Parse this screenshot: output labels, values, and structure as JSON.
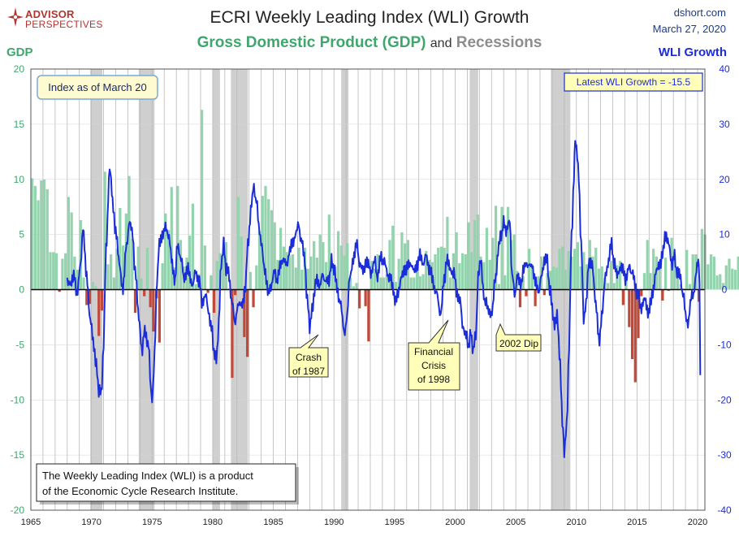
{
  "brand": {
    "name": "ADVISOR",
    "sub": "PERSPECTIVES",
    "mark": "compass-star-logo"
  },
  "site": {
    "url": "dshort.com",
    "date": "March 27, 2020"
  },
  "titles": {
    "title": "ECRI Weekly Leading Index (WLI) Growth",
    "subtitle_gdp": "Gross Domestic Product (GDP)",
    "subtitle_and": "and",
    "subtitle_rec": "Recessions",
    "left_axis": "GDP",
    "right_axis": "WLI Growth"
  },
  "colors": {
    "gdp_pos": "#93d3ad",
    "gdp_neg": "#c0493a",
    "wli": "#1b2dd8",
    "recession": "#cfcfcf",
    "callout_yellow": "#ffffb9",
    "callout_blue_bg": "#fffbd1",
    "grid": "#b8b8b8"
  },
  "chart_data": {
    "type": "bar+line",
    "x_range": [
      1965,
      2020.6
    ],
    "x_ticks": [
      "1965",
      "1970",
      "1975",
      "1980",
      "1985",
      "1990",
      "1995",
      "2000",
      "2005",
      "2010",
      "2015",
      "2020"
    ],
    "left_axis": {
      "label": "GDP",
      "range": [
        -20,
        20
      ],
      "ticks": [
        "20",
        "15",
        "10",
        "5",
        "0",
        "-5",
        "-10",
        "-15",
        "-20"
      ]
    },
    "right_axis": {
      "label": "WLI Growth",
      "range": [
        -40,
        40
      ],
      "ticks": [
        "40",
        "30",
        "20",
        "10",
        "0",
        "-10",
        "-20",
        "-30",
        "-40"
      ]
    },
    "grid": true,
    "recessions": [
      [
        1969.9,
        1970.9
      ],
      [
        1973.9,
        1975.2
      ],
      [
        1980.0,
        1980.6
      ],
      [
        1981.5,
        1982.9
      ],
      [
        1990.6,
        1991.2
      ],
      [
        2001.2,
        2001.9
      ],
      [
        2007.9,
        2009.5
      ]
    ],
    "gdp_start": 1965.0,
    "gdp_quarterly": [
      10.1,
      9.4,
      8.1,
      9.9,
      10.0,
      9.1,
      3.4,
      3.4,
      3.3,
      -0.2,
      2.8,
      3.3,
      8.4,
      7.0,
      3.0,
      1.8,
      6.3,
      1.1,
      -1.4,
      -1.3,
      0.7,
      0.3,
      -4.2,
      -1.9,
      10.7,
      2.3,
      3.2,
      1.1,
      3.7,
      7.4,
      4.0,
      6.9,
      10.3,
      4.6,
      -2.1,
      3.9,
      1.0,
      -0.6,
      3.8,
      -1.6,
      -3.8,
      -0.8,
      -4.8,
      2.4,
      6.9,
      5.4,
      9.3,
      2.0,
      9.4,
      4.5,
      2.1,
      2.9,
      4.9,
      7.8,
      0.5,
      1.4,
      16.3,
      4.0,
      -0.3,
      1.3,
      -2.1,
      2.6,
      3.3,
      3.2,
      4.3,
      0.1,
      -8.0,
      -0.5,
      8.4,
      4.8,
      -4.3,
      -6.1,
      1.6,
      -1.6,
      2.2,
      5.3,
      8.5,
      9.4,
      8.2,
      7.2,
      6.1,
      2.7,
      5.6,
      3.9,
      3.4,
      3.1,
      3.2,
      2.0,
      3.8,
      1.8,
      3.8,
      1.9,
      3.0,
      4.4,
      2.9,
      5.0,
      4.3,
      2.5,
      6.8,
      2.1,
      2.1,
      5.3,
      4.0,
      3.1,
      4.2,
      1.1,
      0.3,
      0.6,
      -1.7,
      0.0,
      -1.5,
      -4.7,
      2.6,
      1.9,
      3.2,
      1.1,
      1.1,
      1.4,
      4.5,
      5.8,
      0.7,
      2.8,
      5.2,
      4.2,
      4.5,
      1.1,
      1.1,
      2.5,
      1.2,
      1.4,
      3.5,
      2.7,
      2.5,
      3.2,
      3.8,
      3.9,
      3.8,
      6.6,
      1.1,
      3.3,
      5.2,
      2.4,
      3.3,
      3.2,
      6.1,
      3.4,
      6.3,
      6.8,
      3.0,
      2.5,
      5.6,
      2.7,
      4.7,
      7.6,
      0.5,
      7.5,
      1.3,
      7.5,
      4.5,
      5.0,
      1.7,
      -1.6,
      1.2,
      -0.6,
      3.7,
      2.3,
      -1.5,
      1.2,
      3.0,
      -0.5,
      1.5,
      1.7,
      2.1,
      2.0,
      3.7,
      3.9,
      1.8,
      3.5,
      3.0,
      3.7,
      4.3,
      2.1,
      3.4,
      2.3,
      4.5,
      3.0,
      3.8,
      1.9,
      2.1,
      1.1,
      0.6,
      2.6,
      0.6,
      2.2,
      2.6,
      -1.4,
      1.4,
      -3.4,
      -6.3,
      -8.4,
      -4.4,
      -0.6,
      1.5,
      4.5,
      1.5,
      3.7,
      3.0,
      2.0,
      -1.0,
      2.9,
      -0.1,
      4.7,
      3.2,
      1.7,
      0.5,
      0.1,
      3.6,
      0.5,
      3.2,
      3.2,
      -1.1,
      5.5,
      5.0,
      2.3,
      3.2,
      3.0,
      1.3,
      1.4,
      0.6,
      2.2,
      2.8,
      1.9,
      1.8,
      3.0,
      2.8,
      2.3,
      2.5,
      3.5,
      2.9,
      1.1,
      3.1,
      2.0,
      2.1,
      2.1
    ],
    "wli_anchors": [
      [
        1968.0,
        2.0
      ],
      [
        1968.3,
        0.5
      ],
      [
        1968.6,
        3.0
      ],
      [
        1968.8,
        -1.5
      ],
      [
        1969.1,
        5.0
      ],
      [
        1969.3,
        10.5
      ],
      [
        1969.6,
        3.0
      ],
      [
        1969.9,
        -6.0
      ],
      [
        1970.2,
        -10.0
      ],
      [
        1970.4,
        -14.0
      ],
      [
        1970.6,
        -18.0
      ],
      [
        1970.8,
        -19.0
      ],
      [
        1971.0,
        -10.0
      ],
      [
        1971.2,
        8.0
      ],
      [
        1971.5,
        21.5
      ],
      [
        1971.8,
        15.0
      ],
      [
        1972.0,
        10.0
      ],
      [
        1972.3,
        5.0
      ],
      [
        1972.6,
        0.0
      ],
      [
        1972.9,
        8.0
      ],
      [
        1973.1,
        12.0
      ],
      [
        1973.4,
        10.0
      ],
      [
        1973.6,
        3.0
      ],
      [
        1973.9,
        -5.0
      ],
      [
        1974.2,
        -11.0
      ],
      [
        1974.4,
        -7.0
      ],
      [
        1974.7,
        -10.0
      ],
      [
        1974.9,
        -18.0
      ],
      [
        1975.0,
        -20.0
      ],
      [
        1975.2,
        -12.0
      ],
      [
        1975.4,
        2.0
      ],
      [
        1975.6,
        8.0
      ],
      [
        1975.9,
        10.5
      ],
      [
        1976.1,
        11.0
      ],
      [
        1976.4,
        10.0
      ],
      [
        1976.6,
        5.0
      ],
      [
        1976.9,
        2.0
      ],
      [
        1977.1,
        8.0
      ],
      [
        1977.4,
        6.0
      ],
      [
        1977.6,
        2.0
      ],
      [
        1977.9,
        4.0
      ],
      [
        1978.1,
        2.5
      ],
      [
        1978.4,
        1.0
      ],
      [
        1978.6,
        3.5
      ],
      [
        1978.9,
        1.5
      ],
      [
        1979.1,
        -2.0
      ],
      [
        1979.4,
        -1.0
      ],
      [
        1979.6,
        -3.0
      ],
      [
        1979.9,
        -7.0
      ],
      [
        1980.1,
        -11.0
      ],
      [
        1980.3,
        -13.0
      ],
      [
        1980.5,
        -6.0
      ],
      [
        1980.7,
        5.0
      ],
      [
        1980.9,
        8.0
      ],
      [
        1981.1,
        4.0
      ],
      [
        1981.3,
        3.0
      ],
      [
        1981.6,
        -2.0
      ],
      [
        1981.8,
        -6.0
      ],
      [
        1982.0,
        -4.0
      ],
      [
        1982.2,
        -2.0
      ],
      [
        1982.5,
        -3.0
      ],
      [
        1982.7,
        1.0
      ],
      [
        1982.9,
        8.0
      ],
      [
        1983.2,
        16.0
      ],
      [
        1983.4,
        18.5
      ],
      [
        1983.6,
        16.0
      ],
      [
        1983.8,
        12.0
      ],
      [
        1984.0,
        8.0
      ],
      [
        1984.3,
        4.0
      ],
      [
        1984.6,
        -1.0
      ],
      [
        1984.8,
        1.0
      ],
      [
        1985.1,
        3.0
      ],
      [
        1985.3,
        2.0
      ],
      [
        1985.6,
        4.0
      ],
      [
        1985.9,
        6.0
      ],
      [
        1986.1,
        4.0
      ],
      [
        1986.3,
        7.0
      ],
      [
        1986.6,
        8.0
      ],
      [
        1986.9,
        11.0
      ],
      [
        1987.1,
        11.5
      ],
      [
        1987.3,
        9.0
      ],
      [
        1987.6,
        5.0
      ],
      [
        1987.8,
        -2.0
      ],
      [
        1988.0,
        -6.5
      ],
      [
        1988.2,
        -4.0
      ],
      [
        1988.4,
        0.0
      ],
      [
        1988.6,
        2.0
      ],
      [
        1988.9,
        1.0
      ],
      [
        1989.1,
        3.0
      ],
      [
        1989.3,
        1.0
      ],
      [
        1989.6,
        2.0
      ],
      [
        1989.8,
        5.0
      ],
      [
        1990.0,
        4.0
      ],
      [
        1990.2,
        1.0
      ],
      [
        1990.5,
        -2.0
      ],
      [
        1990.7,
        -5.0
      ],
      [
        1990.9,
        -8.5
      ],
      [
        1991.1,
        -4.0
      ],
      [
        1991.3,
        2.0
      ],
      [
        1991.6,
        6.0
      ],
      [
        1991.9,
        8.0
      ],
      [
        1992.1,
        5.0
      ],
      [
        1992.4,
        3.0
      ],
      [
        1992.6,
        5.0
      ],
      [
        1992.9,
        4.0
      ],
      [
        1993.1,
        3.0
      ],
      [
        1993.4,
        5.0
      ],
      [
        1993.6,
        2.0
      ],
      [
        1993.9,
        6.0
      ],
      [
        1994.1,
        5.0
      ],
      [
        1994.4,
        3.0
      ],
      [
        1994.6,
        2.0
      ],
      [
        1994.9,
        0.0
      ],
      [
        1995.1,
        -2.5
      ],
      [
        1995.3,
        0.0
      ],
      [
        1995.6,
        2.0
      ],
      [
        1995.9,
        4.0
      ],
      [
        1996.1,
        4.0
      ],
      [
        1996.4,
        5.0
      ],
      [
        1996.6,
        3.0
      ],
      [
        1996.9,
        5.0
      ],
      [
        1997.1,
        6.0
      ],
      [
        1997.4,
        5.0
      ],
      [
        1997.6,
        6.0
      ],
      [
        1997.9,
        4.0
      ],
      [
        1998.1,
        2.0
      ],
      [
        1998.4,
        0.0
      ],
      [
        1998.6,
        -2.0
      ],
      [
        1998.8,
        -5.0
      ],
      [
        1999.1,
        2.0
      ],
      [
        1999.3,
        5.0
      ],
      [
        1999.6,
        4.0
      ],
      [
        1999.9,
        3.0
      ],
      [
        2000.1,
        0.0
      ],
      [
        2000.4,
        -2.0
      ],
      [
        2000.6,
        -6.0
      ],
      [
        2000.9,
        -8.5
      ],
      [
        2001.1,
        -10.0
      ],
      [
        2001.3,
        -8.0
      ],
      [
        2001.5,
        -11.0
      ],
      [
        2001.7,
        -8.0
      ],
      [
        2001.9,
        2.0
      ],
      [
        2002.1,
        6.0
      ],
      [
        2002.3,
        0.0
      ],
      [
        2002.5,
        -2.5
      ],
      [
        2002.7,
        -3.0
      ],
      [
        2002.9,
        -5.0
      ],
      [
        2003.1,
        -3.0
      ],
      [
        2003.3,
        2.0
      ],
      [
        2003.6,
        8.0
      ],
      [
        2003.8,
        10.0
      ],
      [
        2004.0,
        12.0
      ],
      [
        2004.2,
        11.0
      ],
      [
        2004.5,
        12.0
      ],
      [
        2004.7,
        3.0
      ],
      [
        2004.9,
        -1.0
      ],
      [
        2005.1,
        2.0
      ],
      [
        2005.4,
        1.0
      ],
      [
        2005.6,
        3.0
      ],
      [
        2005.9,
        5.0
      ],
      [
        2006.1,
        4.0
      ],
      [
        2006.3,
        5.0
      ],
      [
        2006.6,
        1.0
      ],
      [
        2006.9,
        0.0
      ],
      [
        2007.1,
        2.0
      ],
      [
        2007.4,
        6.0
      ],
      [
        2007.6,
        5.0
      ],
      [
        2007.8,
        0.0
      ],
      [
        2008.0,
        -3.0
      ],
      [
        2008.2,
        -7.0
      ],
      [
        2008.4,
        -4.0
      ],
      [
        2008.6,
        -12.0
      ],
      [
        2008.9,
        -25.0
      ],
      [
        2009.0,
        -29.0
      ],
      [
        2009.2,
        -25.0
      ],
      [
        2009.4,
        -10.0
      ],
      [
        2009.6,
        10.0
      ],
      [
        2009.8,
        20.0
      ],
      [
        2009.9,
        27.5
      ],
      [
        2010.0,
        26.0
      ],
      [
        2010.2,
        20.0
      ],
      [
        2010.4,
        8.0
      ],
      [
        2010.6,
        -5.0
      ],
      [
        2010.8,
        -3.0
      ],
      [
        2011.0,
        5.0
      ],
      [
        2011.3,
        4.0
      ],
      [
        2011.6,
        -2.0
      ],
      [
        2011.9,
        -10.0
      ],
      [
        2012.1,
        -4.0
      ],
      [
        2012.4,
        2.0
      ],
      [
        2012.6,
        5.0
      ],
      [
        2012.9,
        8.0
      ],
      [
        2013.1,
        5.0
      ],
      [
        2013.3,
        3.0
      ],
      [
        2013.6,
        4.0
      ],
      [
        2013.9,
        3.0
      ],
      [
        2014.1,
        2.0
      ],
      [
        2014.4,
        4.0
      ],
      [
        2014.6,
        3.0
      ],
      [
        2014.9,
        0.0
      ],
      [
        2015.1,
        -1.0
      ],
      [
        2015.3,
        -3.0
      ],
      [
        2015.6,
        -2.0
      ],
      [
        2015.9,
        -4.0
      ],
      [
        2016.1,
        -3.0
      ],
      [
        2016.3,
        0.0
      ],
      [
        2016.6,
        3.0
      ],
      [
        2016.9,
        5.0
      ],
      [
        2017.1,
        6.0
      ],
      [
        2017.3,
        10.0
      ],
      [
        2017.6,
        8.0
      ],
      [
        2017.9,
        5.0
      ],
      [
        2018.1,
        6.0
      ],
      [
        2018.3,
        3.0
      ],
      [
        2018.6,
        2.0
      ],
      [
        2018.8,
        -1.0
      ],
      [
        2019.0,
        -4.0
      ],
      [
        2019.2,
        -7.0
      ],
      [
        2019.4,
        -2.0
      ],
      [
        2019.6,
        -1.0
      ],
      [
        2019.8,
        1.0
      ],
      [
        2019.9,
        4.0
      ],
      [
        2020.05,
        6.0
      ],
      [
        2020.15,
        2.0
      ],
      [
        2020.22,
        -15.5
      ]
    ],
    "callouts": {
      "index_date": "Index as of March 20",
      "latest": "Latest WLI Growth = -15.5",
      "crash87_l1": "Crash",
      "crash87_l2": "of 1987",
      "fc98_l1": "Financial",
      "fc98_l2": "Crisis",
      "fc98_l3": "of 1998",
      "dip02": "2002 Dip",
      "note_l1": "The Weekly Leading Index (WLI) is a product",
      "note_l2": "of the Economic Cycle Research Institute."
    }
  }
}
